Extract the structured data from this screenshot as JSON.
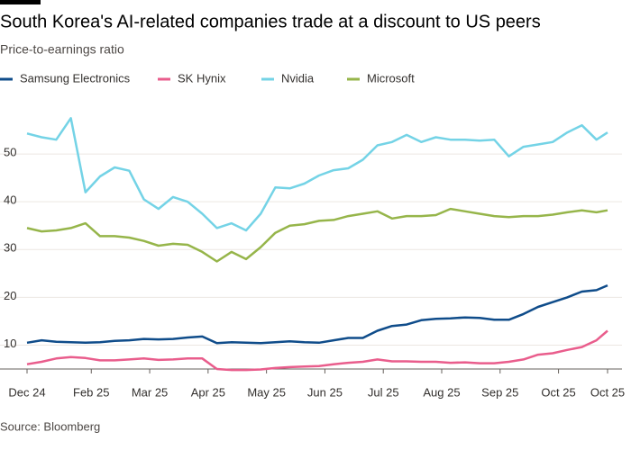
{
  "chart_data": {
    "type": "line",
    "title": "South Korea's AI-related companies trade at a discount to US peers",
    "subtitle": "Price-to-earnings ratio",
    "source": "Source: Bloomberg",
    "x": [
      0.9,
      1.15,
      1.4,
      1.65,
      1.9,
      2.15,
      2.4,
      2.65,
      2.9,
      3.15,
      3.4,
      3.65,
      3.9,
      4.15,
      4.4,
      4.65,
      4.9,
      5.15,
      5.4,
      5.65,
      5.9,
      6.15,
      6.4,
      6.65,
      6.9,
      7.15,
      7.4,
      7.65,
      7.9,
      8.15,
      8.4,
      8.65,
      8.9,
      9.15,
      9.4,
      9.65,
      9.9,
      10.15,
      10.4,
      10.65,
      10.84
    ],
    "series": [
      {
        "name": "Samsung Electronics",
        "color": "#0f4c8a",
        "values": [
          10.5,
          11,
          10.7,
          10.6,
          10.5,
          10.6,
          10.9,
          11,
          11.3,
          11.2,
          11.3,
          11.6,
          11.8,
          10.4,
          10.6,
          10.5,
          10.4,
          10.6,
          10.8,
          10.6,
          10.5,
          11,
          11.5,
          11.5,
          13,
          14,
          14.3,
          15.2,
          15.5,
          15.6,
          15.8,
          15.7,
          15.3,
          15.3,
          16.5,
          18,
          19,
          20,
          21.2,
          21.5,
          22.5
        ]
      },
      {
        "name": "SK Hynix",
        "color": "#e95d8c",
        "values": [
          6,
          6.5,
          7.2,
          7.5,
          7.3,
          6.8,
          6.8,
          7,
          7.2,
          6.9,
          7,
          7.2,
          7.2,
          5,
          4.8,
          4.8,
          4.9,
          5.2,
          5.4,
          5.5,
          5.6,
          6,
          6.3,
          6.5,
          7,
          6.6,
          6.6,
          6.5,
          6.5,
          6.3,
          6.4,
          6.2,
          6.2,
          6.5,
          7,
          8,
          8.3,
          9,
          9.6,
          11,
          13
        ]
      },
      {
        "name": "Nvidia",
        "color": "#74d3e6",
        "values": [
          54.3,
          53.5,
          53,
          57.5,
          42,
          45.3,
          47.2,
          46.5,
          40.5,
          38.5,
          41,
          40,
          37.5,
          34.5,
          35.5,
          34,
          37.5,
          43,
          42.8,
          43.8,
          45.5,
          46.6,
          47,
          48.8,
          51.8,
          52.5,
          54,
          52.5,
          53.5,
          53,
          53,
          52.8,
          53,
          49.5,
          51.5,
          52,
          52.5,
          54.5,
          56,
          53,
          54.5
        ]
      },
      {
        "name": "Microsoft",
        "color": "#96b54a",
        "values": [
          34.5,
          33.8,
          34,
          34.5,
          35.5,
          32.8,
          32.8,
          32.5,
          31.8,
          30.8,
          31.2,
          31,
          29.5,
          27.5,
          29.5,
          28,
          30.5,
          33.5,
          35,
          35.3,
          36,
          36.2,
          37,
          37.5,
          38,
          36.5,
          37,
          37,
          37.2,
          38.5,
          38,
          37.5,
          37,
          36.8,
          37,
          37,
          37.3,
          37.8,
          38.2,
          37.8,
          38.2
        ]
      }
    ],
    "xlim": [
      0.9,
      10.84
    ],
    "xticks": [
      {
        "value": 0.9,
        "label": "Dec 24"
      },
      {
        "value": 2,
        "label": "Feb 25"
      },
      {
        "value": 3,
        "label": "Mar 25"
      },
      {
        "value": 4,
        "label": "Apr 25"
      },
      {
        "value": 5,
        "label": "May 25"
      },
      {
        "value": 6,
        "label": "Jun 25"
      },
      {
        "value": 7,
        "label": "Jul 25"
      },
      {
        "value": 8,
        "label": "Aug 25"
      },
      {
        "value": 9,
        "label": "Sep 25"
      },
      {
        "value": 10,
        "label": "Oct 25"
      },
      {
        "value": 10.84,
        "label": "Oct 25"
      }
    ],
    "ylim": [
      5,
      60
    ],
    "yticks": [
      10,
      20,
      30,
      40,
      50
    ],
    "grid": true
  }
}
